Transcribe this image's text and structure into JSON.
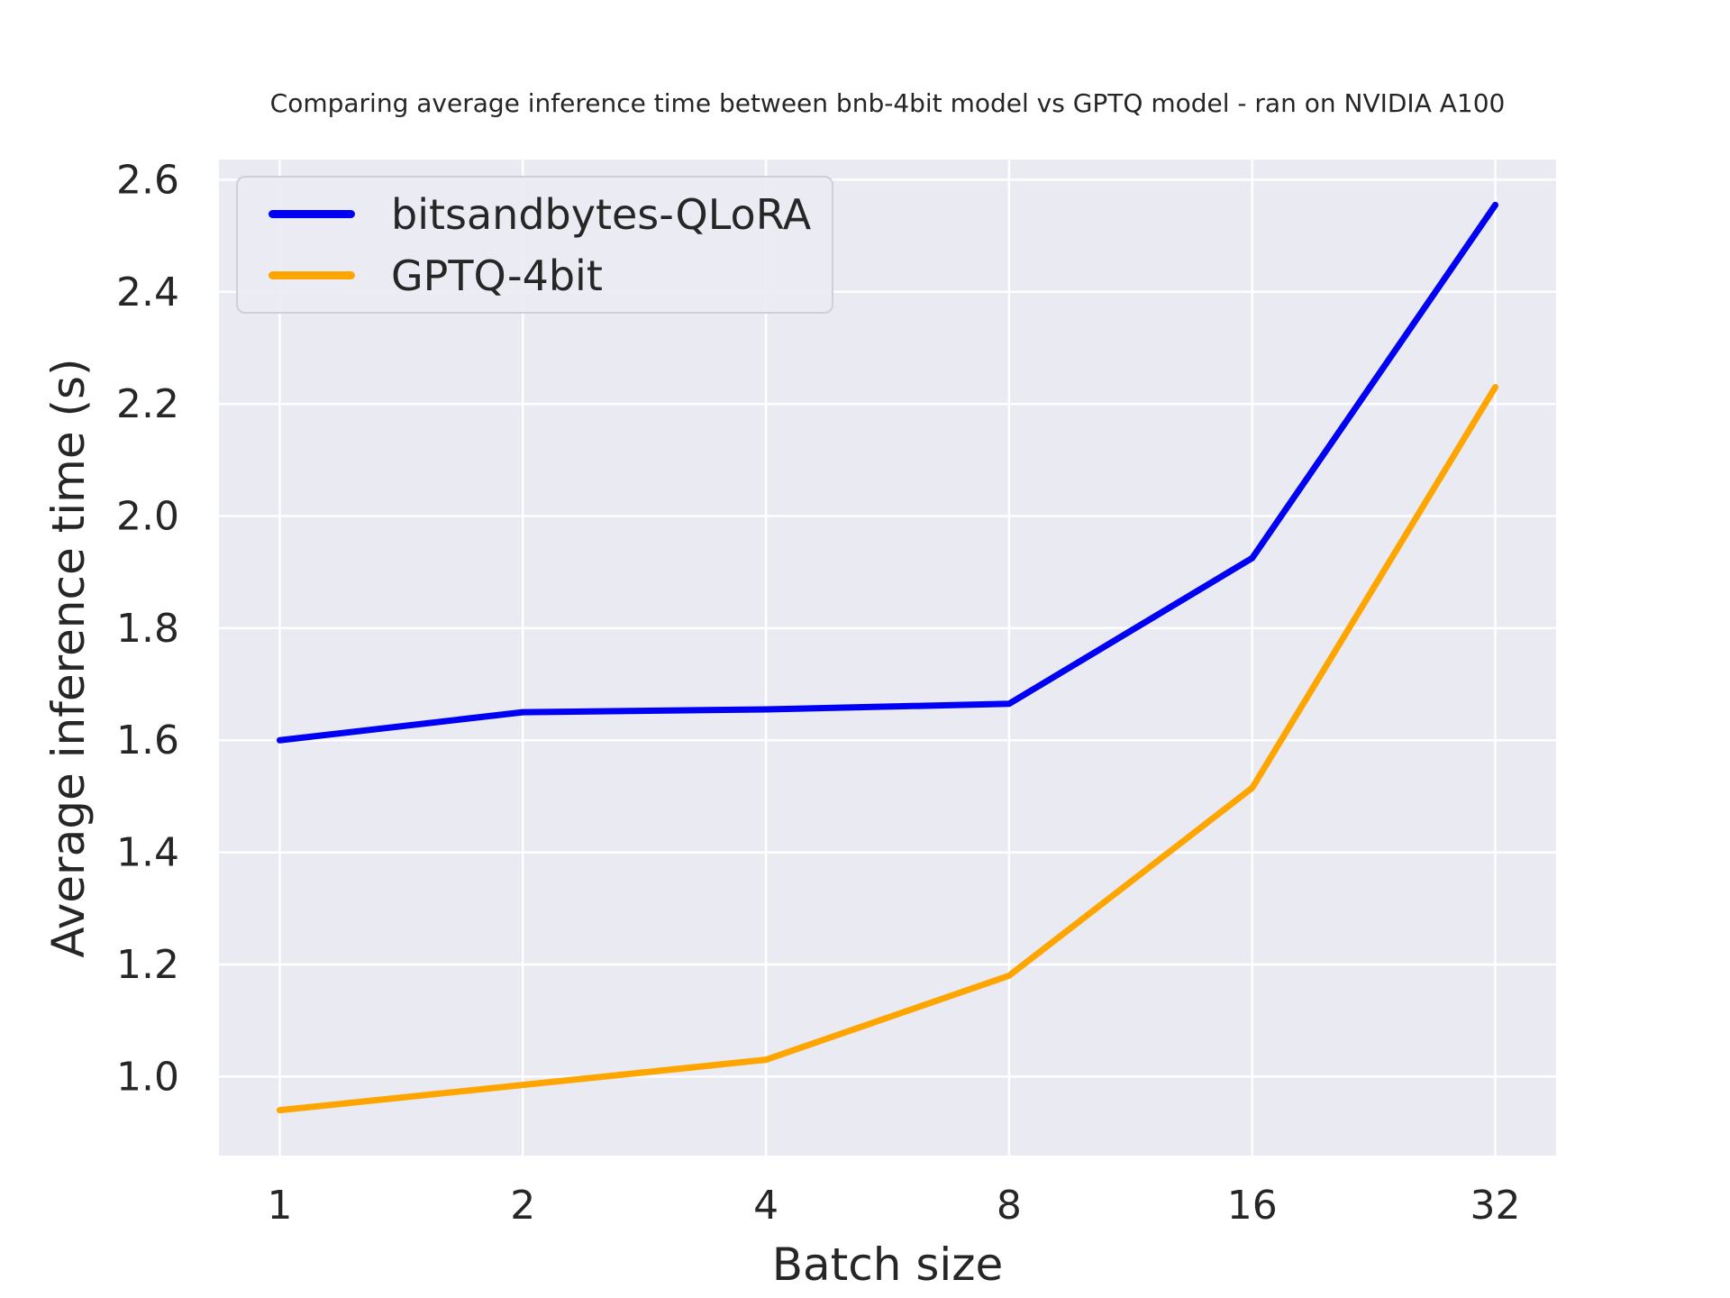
{
  "figure": {
    "background": "#ffffff",
    "text_color": "#262626"
  },
  "chart_data": {
    "type": "line",
    "title": "Comparing average inference time between bnb-4bit model vs GPTQ model - ran on NVIDIA A100",
    "xlabel": "Batch size",
    "ylabel": "Average inference time (s)",
    "x": [
      1,
      2,
      4,
      8,
      16,
      32
    ],
    "x_tick_labels": [
      "1",
      "2",
      "4",
      "8",
      "16",
      "32"
    ],
    "x_scale": "log2",
    "y_ticks": [
      1.0,
      1.2,
      1.4,
      1.6,
      1.8,
      2.0,
      2.2,
      2.4,
      2.6
    ],
    "ylim": [
      0.859,
      2.636
    ],
    "xlim_log2": [
      -0.25,
      5.25
    ],
    "grid": true,
    "plot_background": "#eaeaf2",
    "grid_color": "#ffffff",
    "legend_position": "upper left",
    "series": [
      {
        "name": "bitsandbytes-QLoRA",
        "color": "#0000f5",
        "values": [
          1.6,
          1.65,
          1.655,
          1.665,
          1.925,
          2.555
        ]
      },
      {
        "name": "GPTQ-4bit",
        "color": "#ffa500",
        "values": [
          0.94,
          0.985,
          1.03,
          1.18,
          1.515,
          2.23
        ]
      }
    ]
  }
}
